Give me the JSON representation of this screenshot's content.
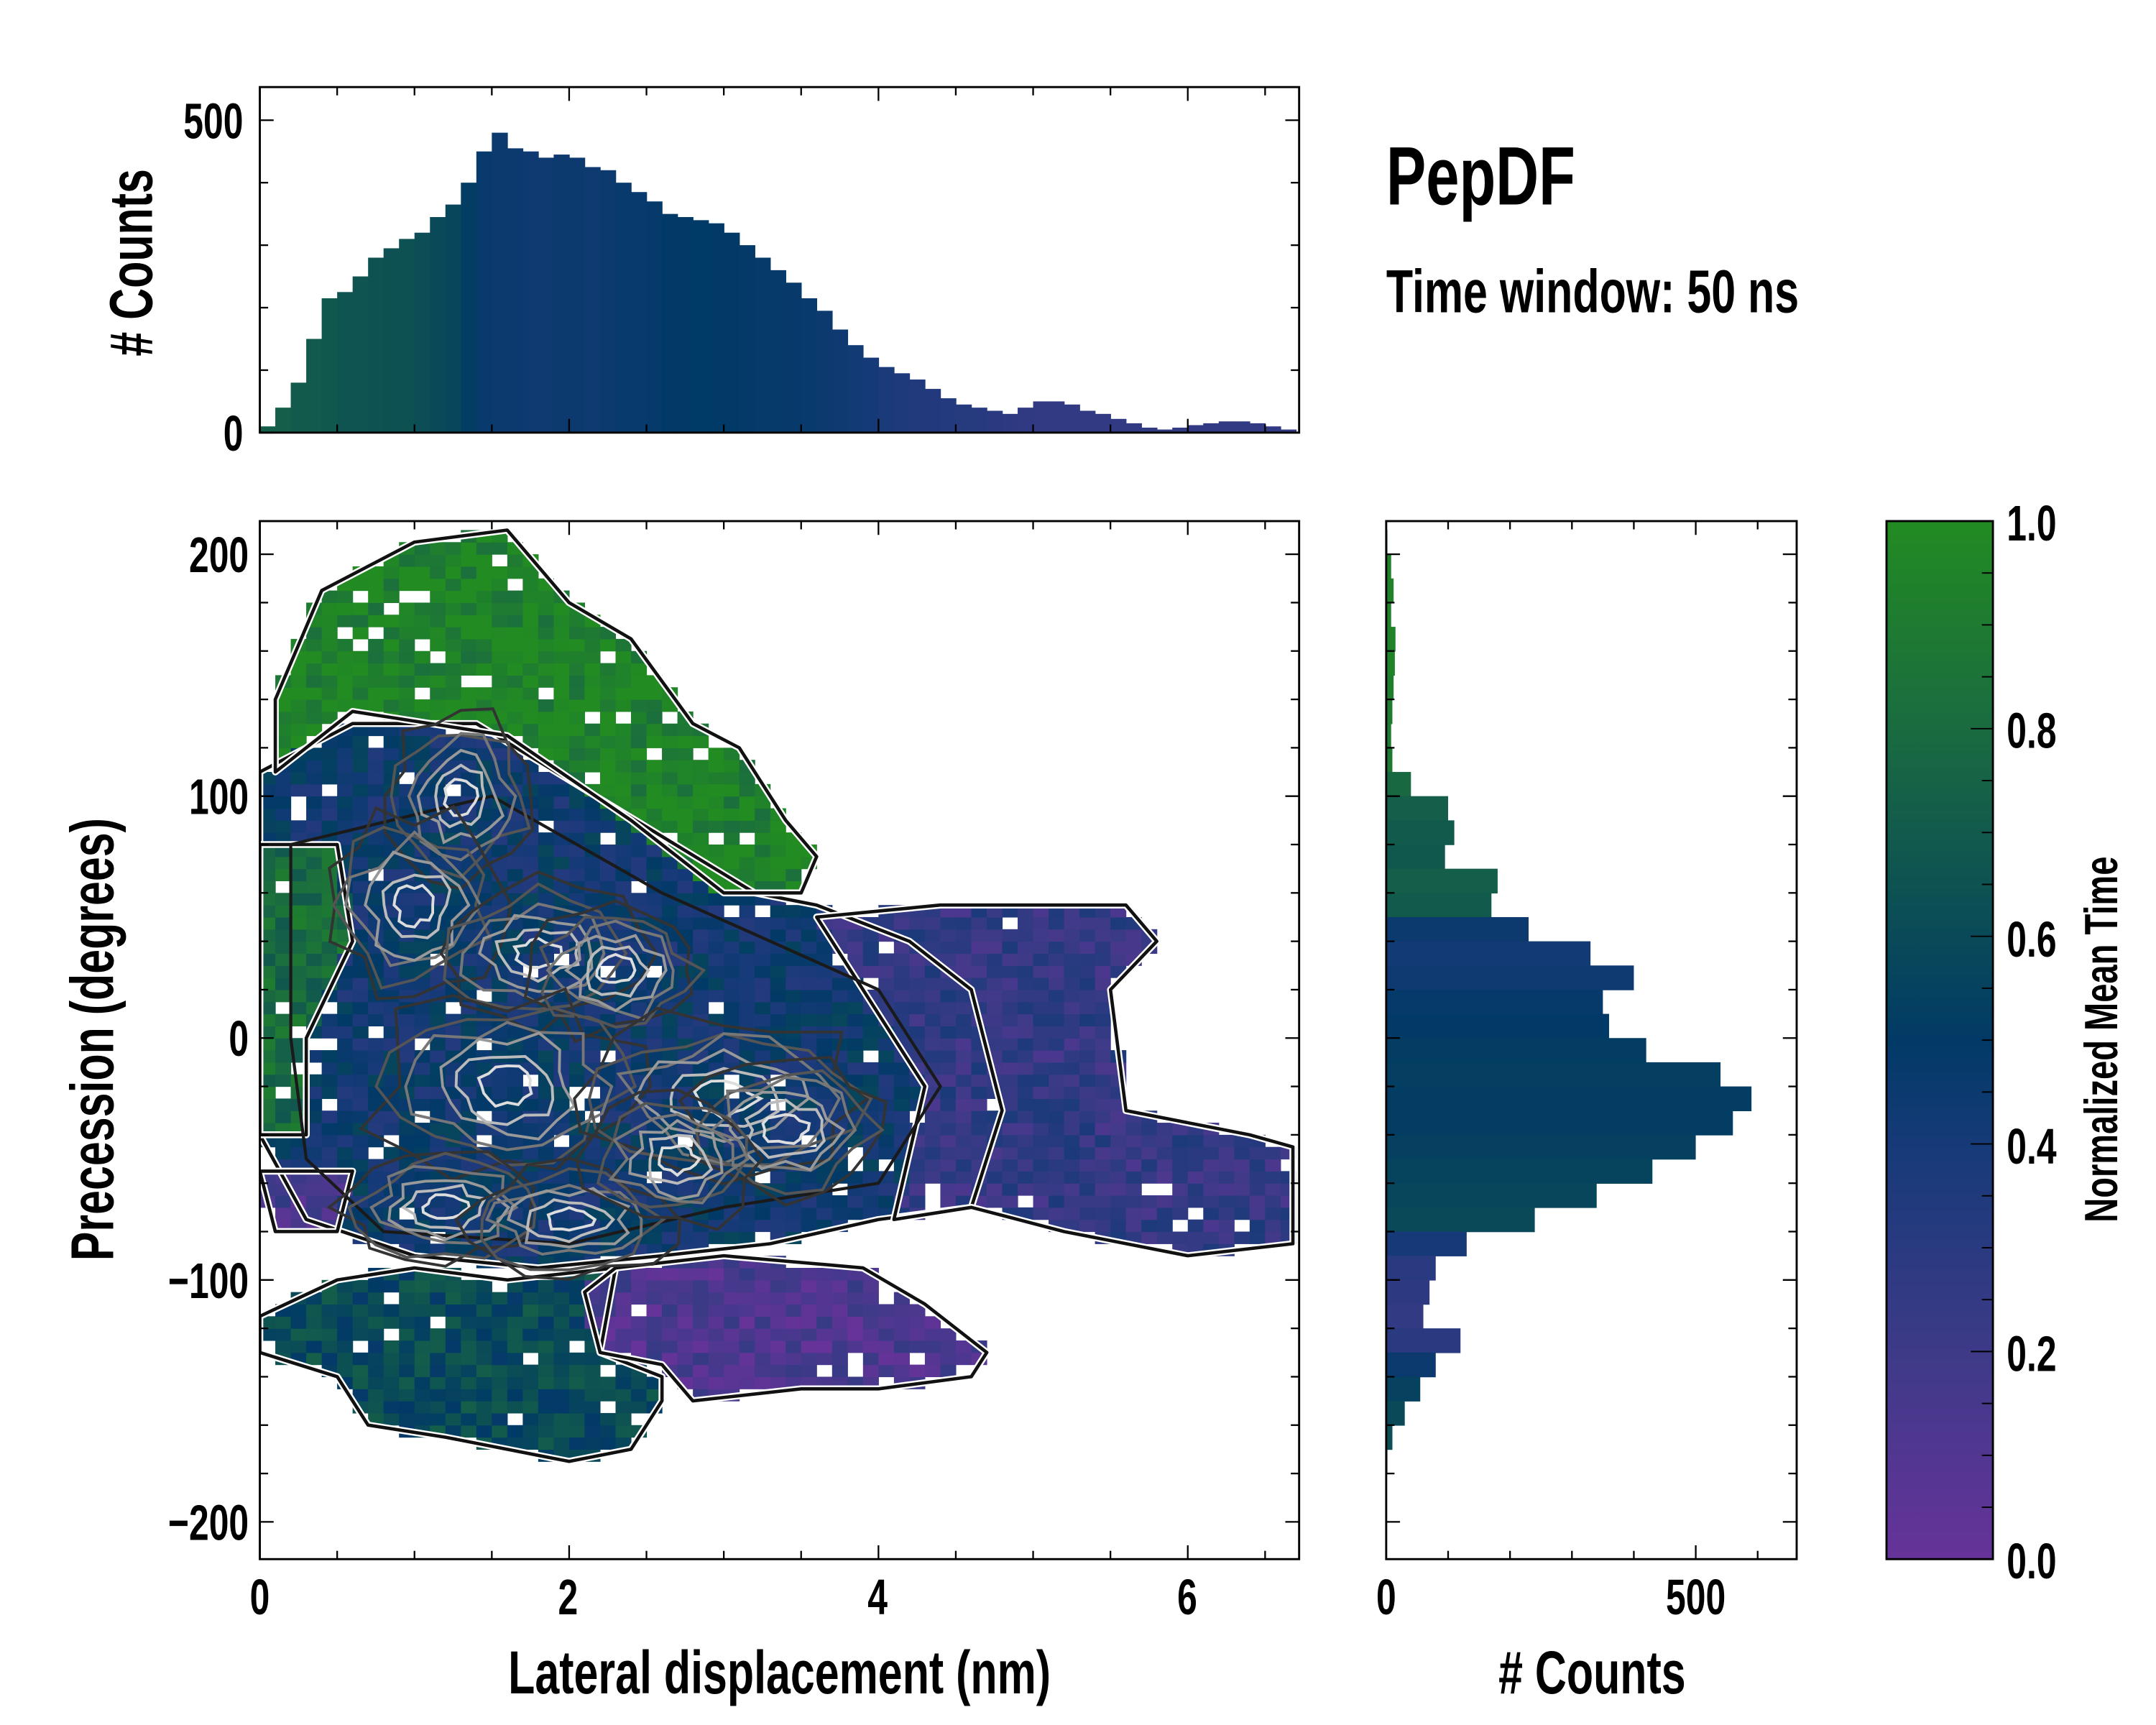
{
  "chart_data": [
    {
      "id": "top-histogram",
      "type": "bar",
      "ylabel": "# Counts",
      "xlim": [
        0,
        6.72
      ],
      "ylim": [
        0,
        553
      ],
      "yticks": [
        "0",
        "500"
      ],
      "bin_width": 0.1,
      "x": [
        0.0,
        0.1,
        0.2,
        0.3,
        0.4,
        0.5,
        0.6,
        0.7,
        0.8,
        0.9,
        1.0,
        1.1,
        1.2,
        1.3,
        1.4,
        1.5,
        1.6,
        1.7,
        1.8,
        1.9,
        2.0,
        2.1,
        2.2,
        2.3,
        2.4,
        2.5,
        2.6,
        2.7,
        2.8,
        2.9,
        3.0,
        3.1,
        3.2,
        3.3,
        3.4,
        3.5,
        3.6,
        3.7,
        3.8,
        3.9,
        4.0,
        4.1,
        4.2,
        4.3,
        4.4,
        4.5,
        4.6,
        4.7,
        4.8,
        4.9,
        5.0,
        5.1,
        5.2,
        5.3,
        5.4,
        5.5,
        5.6,
        5.7,
        5.8,
        5.9,
        6.0,
        6.1,
        6.2,
        6.3,
        6.4,
        6.5,
        6.6
      ],
      "values": [
        10,
        40,
        80,
        150,
        215,
        225,
        250,
        280,
        295,
        310,
        320,
        345,
        365,
        400,
        450,
        480,
        455,
        450,
        440,
        445,
        440,
        425,
        420,
        400,
        385,
        370,
        350,
        345,
        340,
        335,
        320,
        300,
        280,
        260,
        240,
        215,
        195,
        165,
        140,
        120,
        105,
        95,
        85,
        70,
        55,
        45,
        40,
        35,
        30,
        40,
        50,
        50,
        45,
        35,
        30,
        22,
        15,
        8,
        5,
        8,
        12,
        15,
        18,
        18,
        15,
        10,
        5
      ],
      "mean_time": [
        0.72,
        0.72,
        0.7,
        0.7,
        0.68,
        0.66,
        0.66,
        0.65,
        0.64,
        0.64,
        0.62,
        0.6,
        0.58,
        0.52,
        0.46,
        0.45,
        0.45,
        0.44,
        0.44,
        0.45,
        0.45,
        0.44,
        0.45,
        0.46,
        0.46,
        0.48,
        0.5,
        0.5,
        0.5,
        0.5,
        0.5,
        0.49,
        0.48,
        0.48,
        0.47,
        0.46,
        0.45,
        0.44,
        0.42,
        0.4,
        0.38,
        0.36,
        0.35,
        0.34,
        0.33,
        0.32,
        0.31,
        0.3,
        0.28,
        0.27,
        0.26,
        0.26,
        0.26,
        0.25,
        0.25,
        0.25,
        0.25,
        0.25,
        0.25,
        0.25,
        0.25,
        0.25,
        0.25,
        0.25,
        0.25,
        0.25,
        0.25
      ]
    },
    {
      "id": "main-heatmap",
      "type": "heatmap",
      "xlabel": "Lateral displacement (nm)",
      "ylabel": "Precession (degrees)",
      "xlim": [
        0,
        6.72
      ],
      "ylim": [
        -215.4,
        213.7
      ],
      "xticks": [
        "0",
        "2",
        "4",
        "6"
      ],
      "yticks": [
        "200",
        "100",
        "0",
        "−100",
        "−200"
      ],
      "cell": {
        "dx": 0.1,
        "dy": 5
      },
      "regions": [
        {
          "name": "teal-bottom",
          "value": 0.6,
          "polygon": [
            [
              0,
              -115
            ],
            [
              0.5,
              -100
            ],
            [
              1.0,
              -95
            ],
            [
              1.6,
              -100
            ],
            [
              2.3,
              -95
            ],
            [
              2.2,
              -130
            ],
            [
              2.6,
              -140
            ],
            [
              2.6,
              -150
            ],
            [
              2.4,
              -170
            ],
            [
              2.0,
              -175
            ],
            [
              1.2,
              -165
            ],
            [
              0.7,
              -160
            ],
            [
              0.5,
              -140
            ],
            [
              0,
              -130
            ]
          ]
        },
        {
          "name": "blue-core",
          "value": 0.45,
          "polygon": [
            [
              0,
              110
            ],
            [
              0.6,
              130
            ],
            [
              1.4,
              130
            ],
            [
              2.3,
              95
            ],
            [
              3.2,
              60
            ],
            [
              3.6,
              55
            ],
            [
              4.2,
              40
            ],
            [
              4.6,
              20
            ],
            [
              4.8,
              -30
            ],
            [
              4.6,
              -70
            ],
            [
              4.0,
              -75
            ],
            [
              3.3,
              -85
            ],
            [
              2.6,
              -90
            ],
            [
              1.8,
              -95
            ],
            [
              1.0,
              -90
            ],
            [
              0.3,
              -75
            ],
            [
              0,
              -40
            ]
          ]
        },
        {
          "name": "green-top",
          "value": 0.95,
          "polygon": [
            [
              0.1,
              140
            ],
            [
              0.4,
              185
            ],
            [
              1.0,
              205
            ],
            [
              1.6,
              210
            ],
            [
              2.0,
              180
            ],
            [
              2.4,
              165
            ],
            [
              2.8,
              130
            ],
            [
              3.1,
              120
            ],
            [
              3.4,
              90
            ],
            [
              3.6,
              75
            ],
            [
              3.5,
              60
            ],
            [
              3.0,
              60
            ],
            [
              2.4,
              90
            ],
            [
              1.6,
              125
            ],
            [
              0.6,
              135
            ],
            [
              0.1,
              110
            ]
          ]
        },
        {
          "name": "green-left",
          "value": 0.8,
          "polygon": [
            [
              0,
              80
            ],
            [
              0.5,
              80
            ],
            [
              0.6,
              40
            ],
            [
              0.3,
              0
            ],
            [
              0.3,
              -40
            ],
            [
              0,
              -40
            ]
          ]
        },
        {
          "name": "purple-right",
          "value": 0.25,
          "polygon": [
            [
              3.6,
              50
            ],
            [
              4.4,
              55
            ],
            [
              5.0,
              55
            ],
            [
              5.6,
              55
            ],
            [
              5.8,
              40
            ],
            [
              5.5,
              20
            ],
            [
              5.6,
              -30
            ],
            [
              6.4,
              -40
            ],
            [
              6.68,
              -45
            ],
            [
              6.68,
              -85
            ],
            [
              6.0,
              -90
            ],
            [
              5.2,
              -80
            ],
            [
              4.6,
              -70
            ],
            [
              4.1,
              -75
            ],
            [
              4.3,
              -20
            ],
            [
              3.9,
              20
            ]
          ]
        },
        {
          "name": "purple-bottom",
          "value": 0.12,
          "polygon": [
            [
              2.3,
              -95
            ],
            [
              3.0,
              -90
            ],
            [
              3.9,
              -95
            ],
            [
              4.3,
              -110
            ],
            [
              4.7,
              -130
            ],
            [
              4.6,
              -140
            ],
            [
              4.0,
              -145
            ],
            [
              3.5,
              -145
            ],
            [
              2.8,
              -150
            ],
            [
              2.6,
              -135
            ],
            [
              2.2,
              -130
            ],
            [
              2.1,
              -105
            ]
          ]
        },
        {
          "name": "purple-left",
          "value": 0.15,
          "polygon": [
            [
              0,
              -55
            ],
            [
              0.6,
              -55
            ],
            [
              0.5,
              -80
            ],
            [
              0.1,
              -80
            ]
          ]
        }
      ],
      "inner_contour": [
        [
          0.2,
          80
        ],
        [
          1.5,
          100
        ],
        [
          2.6,
          60
        ],
        [
          3.3,
          40
        ],
        [
          4.0,
          20
        ],
        [
          4.4,
          -20
        ],
        [
          4.0,
          -60
        ],
        [
          3.0,
          -70
        ],
        [
          2.0,
          -85
        ],
        [
          0.8,
          -80
        ],
        [
          0.3,
          -50
        ],
        [
          0.2,
          0
        ]
      ],
      "density_peaks": [
        {
          "x": 1.3,
          "y": 100,
          "sx": 0.25,
          "sy": 18
        },
        {
          "x": 1.0,
          "y": 55,
          "sx": 0.3,
          "sy": 20
        },
        {
          "x": 1.8,
          "y": 35,
          "sx": 0.35,
          "sy": 15
        },
        {
          "x": 2.3,
          "y": 28,
          "sx": 0.3,
          "sy": 14
        },
        {
          "x": 1.6,
          "y": -20,
          "sx": 0.45,
          "sy": 20
        },
        {
          "x": 3.0,
          "y": -25,
          "sx": 0.5,
          "sy": 18
        },
        {
          "x": 3.4,
          "y": -38,
          "sx": 0.35,
          "sy": 15
        },
        {
          "x": 1.2,
          "y": -70,
          "sx": 0.35,
          "sy": 12
        },
        {
          "x": 2.0,
          "y": -75,
          "sx": 0.35,
          "sy": 12
        },
        {
          "x": 2.7,
          "y": -50,
          "sx": 0.3,
          "sy": 14
        }
      ]
    },
    {
      "id": "right-histogram",
      "type": "bar",
      "orientation": "horizontal",
      "xlabel": "# Counts",
      "xlim": [
        0,
        663
      ],
      "xticks": [
        "0",
        "500"
      ],
      "bin_width": 10,
      "y": [
        205,
        195,
        185,
        175,
        165,
        155,
        145,
        135,
        125,
        115,
        105,
        95,
        85,
        75,
        65,
        55,
        45,
        35,
        25,
        15,
        5,
        -5,
        -15,
        -25,
        -35,
        -45,
        -55,
        -65,
        -75,
        -85,
        -95,
        -105,
        -115,
        -125,
        -135,
        -145,
        -155,
        -165,
        -175
      ],
      "values": [
        2,
        8,
        12,
        8,
        15,
        14,
        12,
        10,
        8,
        10,
        40,
        100,
        110,
        95,
        180,
        170,
        230,
        330,
        400,
        350,
        360,
        420,
        540,
        590,
        560,
        500,
        430,
        340,
        240,
        130,
        80,
        70,
        60,
        120,
        80,
        55,
        30,
        10,
        2
      ],
      "mean_time": [
        0.95,
        0.95,
        0.95,
        0.95,
        0.95,
        0.95,
        0.92,
        0.9,
        0.9,
        0.88,
        0.78,
        0.72,
        0.7,
        0.68,
        0.72,
        0.7,
        0.45,
        0.42,
        0.44,
        0.48,
        0.5,
        0.52,
        0.53,
        0.52,
        0.52,
        0.54,
        0.56,
        0.58,
        0.6,
        0.4,
        0.3,
        0.28,
        0.26,
        0.3,
        0.45,
        0.55,
        0.6,
        0.62,
        0.6
      ]
    },
    {
      "id": "colorbar",
      "type": "colorbar",
      "label": "Normalized Mean Time",
      "range": [
        0,
        1
      ],
      "ticks": [
        "0.0",
        "0.2",
        "0.4",
        "0.6",
        "0.8",
        "1.0"
      ],
      "colormap": [
        [
          0.0,
          "#663399"
        ],
        [
          0.2,
          "#3d3a88"
        ],
        [
          0.4,
          "#163a78"
        ],
        [
          0.5,
          "#013a66"
        ],
        [
          0.6,
          "#0a4a58"
        ],
        [
          0.8,
          "#1a6b40"
        ],
        [
          1.0,
          "#228b22"
        ]
      ]
    }
  ],
  "annotations": {
    "title": "PepDF",
    "subtitle": "Time window: 50 ns"
  }
}
